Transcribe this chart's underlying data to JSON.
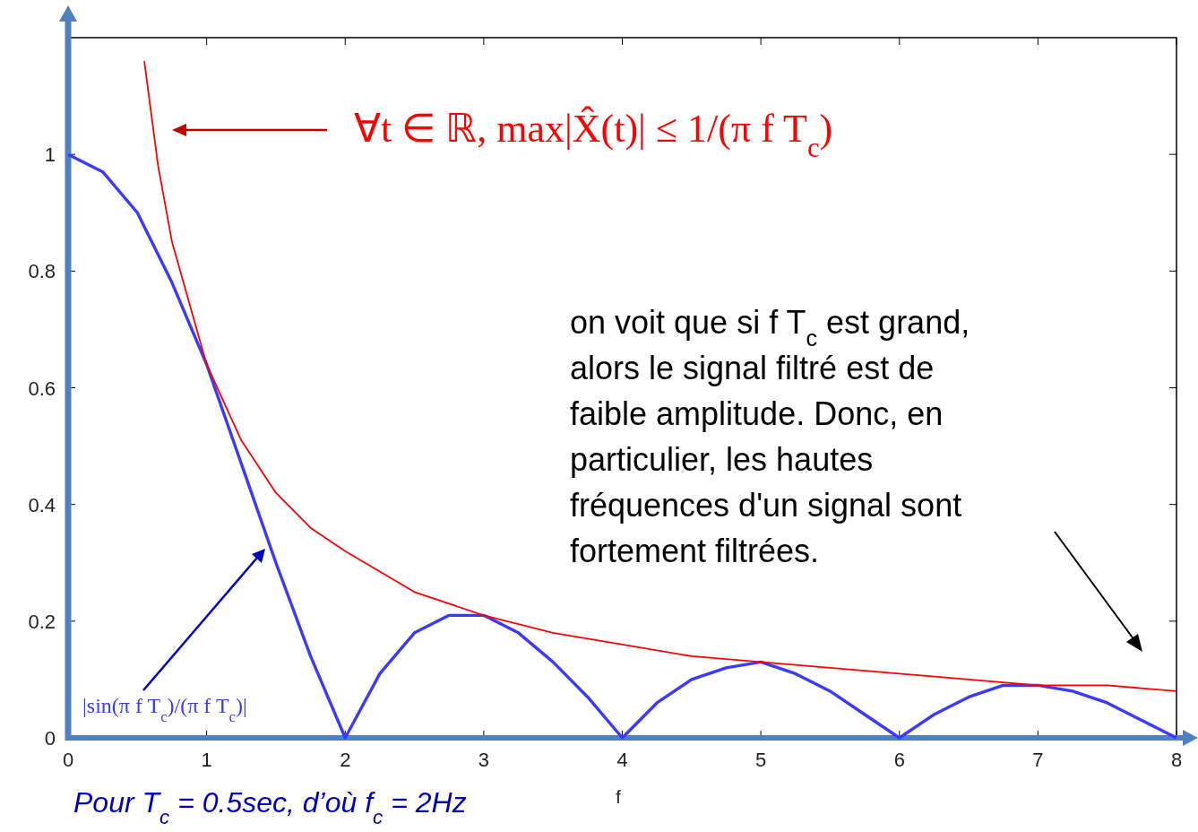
{
  "chart_data": {
    "type": "line",
    "xlabel": "f",
    "xlim": [
      0,
      8
    ],
    "xticks": [
      0,
      1,
      2,
      3,
      4,
      5,
      6,
      7,
      8
    ],
    "ylim": [
      0,
      1.2
    ],
    "yticks": [
      0,
      0.2,
      0.4,
      0.6,
      0.8,
      1
    ],
    "grid": false,
    "marker": "none",
    "line_style": "solid",
    "series": [
      {
        "name": "|sin(π f T$_{c}$)/(π f T$_{c}$)|",
        "color": "#3a3aff",
        "x": [
          0,
          0.25,
          0.5,
          0.75,
          1,
          1.25,
          1.5,
          1.75,
          2,
          2.25,
          2.5,
          2.75,
          3,
          3.25,
          3.5,
          3.75,
          4,
          4.25,
          4.5,
          4.75,
          5,
          5.25,
          5.5,
          5.75,
          6,
          6.25,
          6.5,
          6.75,
          7,
          7.25,
          7.5,
          7.75,
          8
        ],
        "values": [
          1,
          0.97,
          0.9,
          0.78,
          0.64,
          0.47,
          0.3,
          0.14,
          0,
          0.11,
          0.18,
          0.21,
          0.21,
          0.18,
          0.13,
          0.07,
          0,
          0.06,
          0.1,
          0.12,
          0.13,
          0.11,
          0.08,
          0.04,
          0,
          0.04,
          0.07,
          0.09,
          0.09,
          0.08,
          0.06,
          0.03,
          0
        ]
      },
      {
        "name": "∀t ∈ ℝ, max|X̂(t)| ≤ 1/(π f T$_{c}$)",
        "color": "#ff0000",
        "x": [
          0.55,
          0.65,
          0.75,
          1,
          1.25,
          1.5,
          1.75,
          2,
          2.5,
          3,
          3.5,
          4,
          4.5,
          5,
          5.5,
          6,
          6.5,
          7,
          7.5,
          8
        ],
        "values": [
          1.16,
          0.98,
          0.85,
          0.64,
          0.51,
          0.42,
          0.36,
          0.32,
          0.25,
          0.21,
          0.18,
          0.16,
          0.14,
          0.13,
          0.12,
          0.11,
          0.1,
          0.09,
          0.09,
          0.08
        ]
      }
    ],
    "annotations": [
      "on voit que si f T$_{c}$ est grand, alors le signal filtré est de faible amplitude. Donc, en particulier, les hautes fréquences d'un signal sont fortement filtrées.",
      "Pour T$_{c}$ = 0.5sec, d’où f$_{c}$ = 2Hz"
    ]
  }
}
